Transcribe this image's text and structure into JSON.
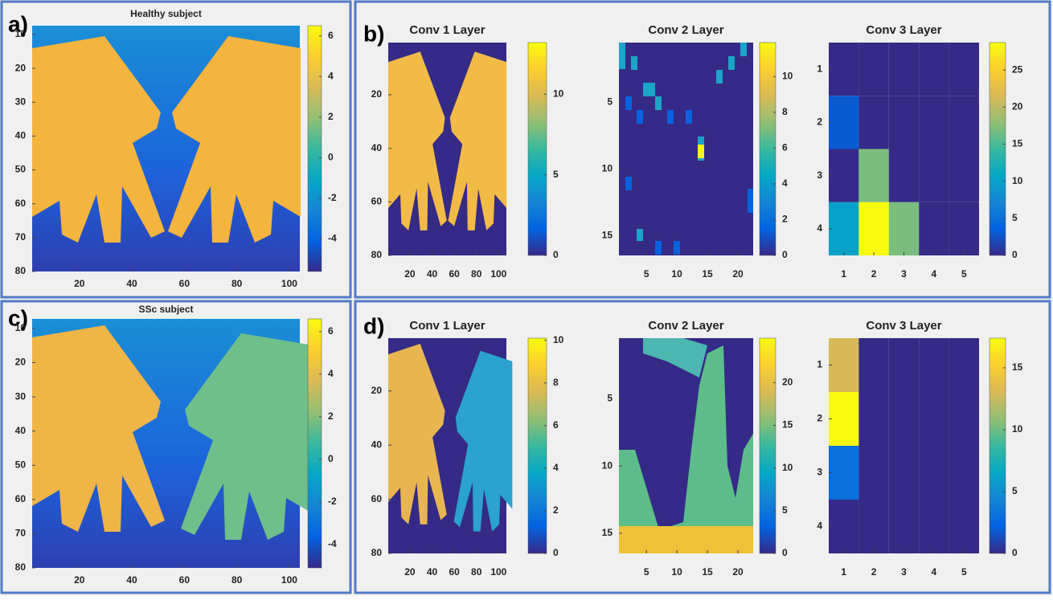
{
  "chart_data": [
    {
      "type": "heatmap",
      "panel_label": "a)",
      "title": "Healthy subject",
      "xlim": [
        2,
        104
      ],
      "xticks": [
        20,
        40,
        60,
        80,
        100
      ],
      "ylim": [
        7.4,
        80
      ],
      "yticks": [
        10,
        20,
        30,
        40,
        50,
        60,
        70,
        80
      ],
      "clim": [
        -5.6,
        6.5
      ],
      "cticks": [
        -4,
        -2,
        0,
        2,
        4,
        6
      ]
    },
    {
      "type": "heatmap",
      "panel_label": "b)",
      "title": "Conv 1 Layer",
      "xlim": [
        0.5,
        107
      ],
      "xticks": [
        20,
        40,
        60,
        80,
        100
      ],
      "ylim": [
        0.5,
        80
      ],
      "yticks": [
        20,
        40,
        60,
        80
      ],
      "clim": [
        0,
        13.2
      ],
      "cticks": [
        0,
        5,
        10
      ]
    },
    {
      "type": "heatmap",
      "title": "Conv 2 Layer",
      "xlim": [
        0.5,
        22.5
      ],
      "xticks": [
        5,
        10,
        15,
        20
      ],
      "ylim": [
        0.5,
        16.5
      ],
      "yticks": [
        5,
        10,
        15
      ],
      "clim": [
        0,
        11.9
      ],
      "cticks": [
        0,
        2,
        4,
        6,
        8,
        10
      ]
    },
    {
      "type": "heatmap",
      "title": "Conv 3 Layer",
      "xlim": [
        0.5,
        5.5
      ],
      "xticks": [
        1,
        2,
        3,
        4,
        5
      ],
      "ylim": [
        0.5,
        4.5
      ],
      "yticks": [
        1,
        2,
        3,
        4
      ],
      "clim": [
        0,
        28.7
      ],
      "cticks": [
        0,
        5,
        10,
        15,
        20,
        25
      ],
      "values": [
        [
          0,
          0,
          0,
          0,
          0
        ],
        [
          3,
          0,
          0,
          0,
          0
        ],
        [
          0,
          17,
          0,
          0,
          0
        ],
        [
          10,
          28.7,
          17,
          0,
          0
        ]
      ]
    },
    {
      "type": "heatmap",
      "panel_label": "c)",
      "title": "SSc subject",
      "xlim": [
        2,
        104
      ],
      "xticks": [
        20,
        40,
        60,
        80,
        100
      ],
      "ylim": [
        7.2,
        80
      ],
      "yticks": [
        10,
        20,
        30,
        40,
        50,
        60,
        70,
        80
      ],
      "clim": [
        -5.1,
        6.6
      ],
      "cticks": [
        -4,
        -2,
        0,
        2,
        4,
        6
      ]
    },
    {
      "type": "heatmap",
      "panel_label": "d)",
      "title": "Conv 1 Layer",
      "xlim": [
        0.5,
        107
      ],
      "xticks": [
        20,
        40,
        60,
        80,
        100
      ],
      "ylim": [
        0.5,
        80
      ],
      "yticks": [
        20,
        40,
        60,
        80
      ],
      "clim": [
        0,
        10.1
      ],
      "cticks": [
        0,
        2,
        4,
        6,
        8,
        10
      ]
    },
    {
      "type": "heatmap",
      "title": "Conv 2 Layer",
      "xlim": [
        0.5,
        22.5
      ],
      "xticks": [
        5,
        10,
        15,
        20
      ],
      "ylim": [
        0.5,
        16.5
      ],
      "yticks": [
        5,
        10,
        15
      ],
      "clim": [
        0,
        25.2
      ],
      "cticks": [
        0,
        5,
        10,
        15,
        20
      ]
    },
    {
      "type": "heatmap",
      "title": "Conv 3 Layer",
      "xlim": [
        0.5,
        5.5
      ],
      "xticks": [
        1,
        2,
        3,
        4,
        5
      ],
      "ylim": [
        0.5,
        4.5
      ],
      "yticks": [
        1,
        2,
        3,
        4
      ],
      "clim": [
        0,
        17.4
      ],
      "cticks": [
        0,
        5,
        10,
        15
      ],
      "values": [
        [
          13,
          0,
          0,
          0,
          0
        ],
        [
          17.4,
          0,
          0,
          0,
          0
        ],
        [
          3,
          0,
          0,
          0,
          0
        ],
        [
          0,
          0,
          0,
          0,
          0
        ]
      ]
    }
  ]
}
